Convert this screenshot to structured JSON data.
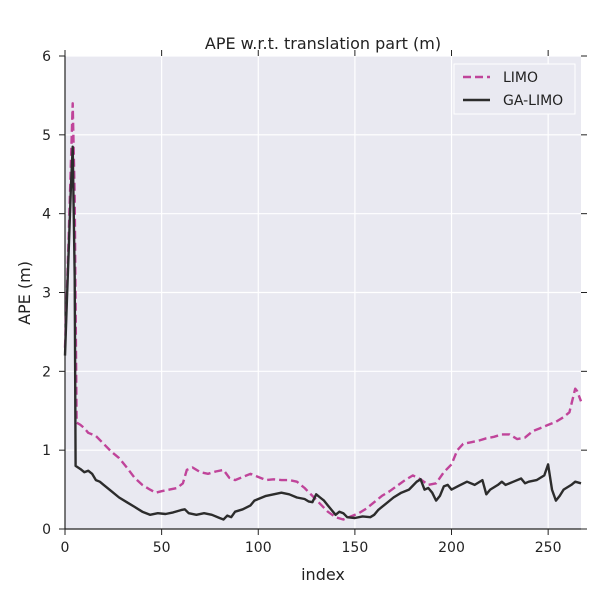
{
  "chart_data": {
    "type": "line",
    "title": "APE w.r.t. translation part (m)",
    "xlabel": "index",
    "ylabel": "APE (m)",
    "xlim": [
      0,
      267
    ],
    "ylim": [
      0,
      6
    ],
    "xticks": [
      0,
      50,
      100,
      150,
      200,
      250
    ],
    "yticks": [
      0,
      1,
      2,
      3,
      4,
      5,
      6
    ],
    "grid": true,
    "legend_position": "top-right",
    "background": "#e9e9f1",
    "series": [
      {
        "name": "LIMO",
        "color": "#c0449a",
        "dash": "dashed",
        "points": [
          [
            0,
            2.3
          ],
          [
            1,
            3.0
          ],
          [
            2,
            3.8
          ],
          [
            3,
            4.6
          ],
          [
            4,
            5.4
          ],
          [
            5,
            4.2
          ],
          [
            6,
            1.35
          ],
          [
            8,
            1.32
          ],
          [
            10,
            1.28
          ],
          [
            12,
            1.22
          ],
          [
            16,
            1.18
          ],
          [
            20,
            1.08
          ],
          [
            24,
            0.98
          ],
          [
            28,
            0.9
          ],
          [
            32,
            0.78
          ],
          [
            36,
            0.65
          ],
          [
            40,
            0.56
          ],
          [
            44,
            0.5
          ],
          [
            47,
            0.46
          ],
          [
            50,
            0.48
          ],
          [
            54,
            0.5
          ],
          [
            58,
            0.52
          ],
          [
            61,
            0.58
          ],
          [
            63,
            0.75
          ],
          [
            66,
            0.78
          ],
          [
            70,
            0.72
          ],
          [
            74,
            0.7
          ],
          [
            78,
            0.73
          ],
          [
            82,
            0.75
          ],
          [
            85,
            0.65
          ],
          [
            88,
            0.62
          ],
          [
            92,
            0.66
          ],
          [
            96,
            0.7
          ],
          [
            100,
            0.66
          ],
          [
            104,
            0.62
          ],
          [
            108,
            0.63
          ],
          [
            112,
            0.62
          ],
          [
            116,
            0.62
          ],
          [
            120,
            0.6
          ],
          [
            124,
            0.52
          ],
          [
            128,
            0.42
          ],
          [
            132,
            0.32
          ],
          [
            136,
            0.22
          ],
          [
            140,
            0.15
          ],
          [
            144,
            0.12
          ],
          [
            148,
            0.16
          ],
          [
            152,
            0.2
          ],
          [
            156,
            0.26
          ],
          [
            160,
            0.34
          ],
          [
            164,
            0.42
          ],
          [
            168,
            0.48
          ],
          [
            172,
            0.55
          ],
          [
            176,
            0.62
          ],
          [
            180,
            0.68
          ],
          [
            184,
            0.63
          ],
          [
            188,
            0.56
          ],
          [
            192,
            0.58
          ],
          [
            196,
            0.72
          ],
          [
            200,
            0.82
          ],
          [
            203,
            1.0
          ],
          [
            206,
            1.08
          ],
          [
            210,
            1.1
          ],
          [
            214,
            1.12
          ],
          [
            218,
            1.15
          ],
          [
            222,
            1.17
          ],
          [
            226,
            1.2
          ],
          [
            230,
            1.2
          ],
          [
            234,
            1.14
          ],
          [
            238,
            1.16
          ],
          [
            242,
            1.24
          ],
          [
            246,
            1.28
          ],
          [
            250,
            1.32
          ],
          [
            254,
            1.36
          ],
          [
            258,
            1.42
          ],
          [
            261,
            1.48
          ],
          [
            264,
            1.78
          ],
          [
            265,
            1.75
          ],
          [
            267,
            1.62
          ]
        ]
      },
      {
        "name": "GA-LIMO",
        "color": "#2c2c2c",
        "dash": "solid",
        "points": [
          [
            0,
            2.2
          ],
          [
            1,
            2.9
          ],
          [
            2,
            3.6
          ],
          [
            3,
            4.3
          ],
          [
            4,
            4.85
          ],
          [
            5,
            3.2
          ],
          [
            5.5,
            0.8
          ],
          [
            8,
            0.76
          ],
          [
            10,
            0.72
          ],
          [
            12,
            0.74
          ],
          [
            14,
            0.7
          ],
          [
            16,
            0.62
          ],
          [
            18,
            0.6
          ],
          [
            20,
            0.56
          ],
          [
            24,
            0.48
          ],
          [
            28,
            0.4
          ],
          [
            32,
            0.34
          ],
          [
            36,
            0.28
          ],
          [
            40,
            0.22
          ],
          [
            44,
            0.18
          ],
          [
            48,
            0.2
          ],
          [
            52,
            0.19
          ],
          [
            56,
            0.21
          ],
          [
            60,
            0.24
          ],
          [
            62,
            0.25
          ],
          [
            64,
            0.2
          ],
          [
            68,
            0.18
          ],
          [
            72,
            0.2
          ],
          [
            76,
            0.18
          ],
          [
            80,
            0.14
          ],
          [
            82,
            0.12
          ],
          [
            84,
            0.17
          ],
          [
            86,
            0.15
          ],
          [
            88,
            0.22
          ],
          [
            92,
            0.25
          ],
          [
            96,
            0.3
          ],
          [
            98,
            0.36
          ],
          [
            100,
            0.38
          ],
          [
            104,
            0.42
          ],
          [
            108,
            0.44
          ],
          [
            112,
            0.46
          ],
          [
            116,
            0.44
          ],
          [
            120,
            0.4
          ],
          [
            124,
            0.38
          ],
          [
            126,
            0.35
          ],
          [
            128,
            0.34
          ],
          [
            130,
            0.44
          ],
          [
            132,
            0.4
          ],
          [
            134,
            0.36
          ],
          [
            136,
            0.3
          ],
          [
            138,
            0.24
          ],
          [
            140,
            0.18
          ],
          [
            142,
            0.22
          ],
          [
            144,
            0.2
          ],
          [
            146,
            0.15
          ],
          [
            150,
            0.14
          ],
          [
            154,
            0.16
          ],
          [
            158,
            0.15
          ],
          [
            160,
            0.18
          ],
          [
            162,
            0.24
          ],
          [
            164,
            0.28
          ],
          [
            166,
            0.32
          ],
          [
            170,
            0.4
          ],
          [
            174,
            0.46
          ],
          [
            178,
            0.5
          ],
          [
            180,
            0.55
          ],
          [
            182,
            0.6
          ],
          [
            184,
            0.63
          ],
          [
            186,
            0.5
          ],
          [
            188,
            0.52
          ],
          [
            190,
            0.46
          ],
          [
            192,
            0.36
          ],
          [
            194,
            0.42
          ],
          [
            196,
            0.54
          ],
          [
            198,
            0.56
          ],
          [
            200,
            0.5
          ],
          [
            204,
            0.55
          ],
          [
            208,
            0.6
          ],
          [
            212,
            0.56
          ],
          [
            216,
            0.62
          ],
          [
            218,
            0.44
          ],
          [
            220,
            0.5
          ],
          [
            224,
            0.56
          ],
          [
            226,
            0.6
          ],
          [
            228,
            0.56
          ],
          [
            232,
            0.6
          ],
          [
            236,
            0.64
          ],
          [
            238,
            0.58
          ],
          [
            240,
            0.6
          ],
          [
            244,
            0.62
          ],
          [
            248,
            0.68
          ],
          [
            250,
            0.82
          ],
          [
            252,
            0.5
          ],
          [
            254,
            0.36
          ],
          [
            256,
            0.42
          ],
          [
            258,
            0.5
          ],
          [
            262,
            0.56
          ],
          [
            264,
            0.6
          ],
          [
            267,
            0.58
          ]
        ]
      }
    ]
  }
}
